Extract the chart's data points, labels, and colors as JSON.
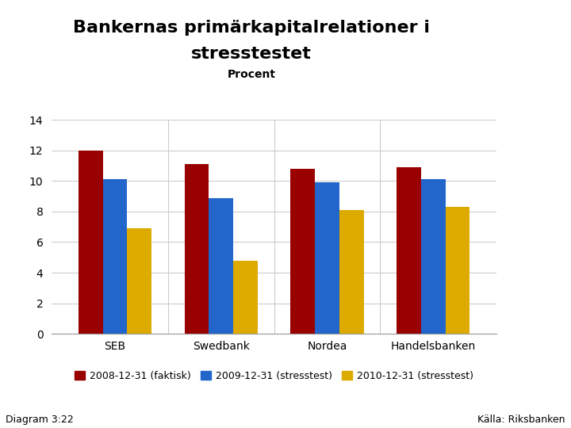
{
  "title_line1": "Bankernas primärkapitalrelationer i",
  "title_line2": "stresstestet",
  "subtitle": "Procent",
  "categories": [
    "SEB",
    "Swedbank",
    "Nordea",
    "Handelsbanken"
  ],
  "series": {
    "2008-12-31 (faktisk)": [
      12.0,
      11.1,
      10.8,
      10.9
    ],
    "2009-12-31 (stresstest)": [
      10.1,
      8.9,
      9.9,
      10.1
    ],
    "2010-12-31 (stresstest)": [
      6.9,
      4.8,
      8.1,
      8.3
    ]
  },
  "colors": [
    "#990000",
    "#2266cc",
    "#ddaa00"
  ],
  "ylim": [
    0,
    14
  ],
  "yticks": [
    0,
    2,
    4,
    6,
    8,
    10,
    12,
    14
  ],
  "legend_labels": [
    "2008-12-31 (faktisk)",
    "2009-12-31 (stresstest)",
    "2010-12-31 (stresstest)"
  ],
  "footer_left": "Diagram 3:22",
  "footer_right": "Källa: Riksbanken",
  "bg_color": "#ffffff",
  "footer_bar_color": "#1a3a7a",
  "logo_color": "#1a3a7a",
  "title_fontsize": 16,
  "subtitle_fontsize": 10,
  "axis_tick_fontsize": 10,
  "legend_fontsize": 9,
  "footer_fontsize": 9
}
